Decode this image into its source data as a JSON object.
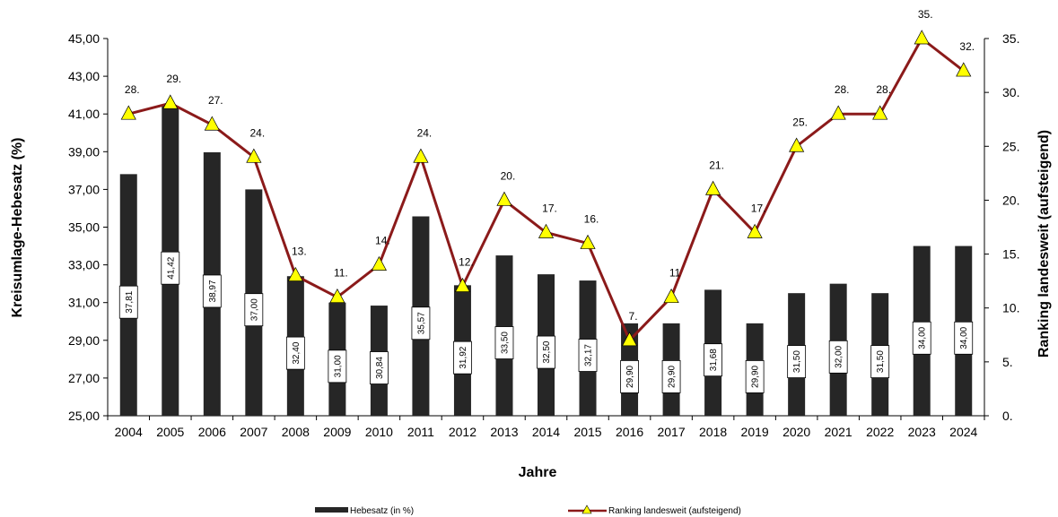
{
  "chart_data": {
    "type": "bar+line",
    "xlabel": "Jahre",
    "ylabel_left": "Kreisumlage-Hebesatz (%)",
    "ylabel_right": "Ranking landesweit (aufsteigend)",
    "ylim_left": [
      25,
      45
    ],
    "ylim_right": [
      0,
      35
    ],
    "left_ticks": [
      "25,00",
      "27,00",
      "29,00",
      "31,00",
      "33,00",
      "35,00",
      "37,00",
      "39,00",
      "41,00",
      "43,00",
      "45,00"
    ],
    "right_ticks": [
      "0.",
      "5.",
      "10.",
      "15.",
      "20.",
      "25.",
      "30.",
      "35."
    ],
    "categories": [
      "2004",
      "2005",
      "2006",
      "2007",
      "2008",
      "2009",
      "2010",
      "2011",
      "2012",
      "2013",
      "2014",
      "2015",
      "2016",
      "2017",
      "2018",
      "2019",
      "2020",
      "2021",
      "2022",
      "2023",
      "2024"
    ],
    "series": [
      {
        "name": "Hebesatz (in %)",
        "type": "bar",
        "color": "#262626",
        "values": [
          37.81,
          41.42,
          38.97,
          37.0,
          32.4,
          31.0,
          30.84,
          35.57,
          31.92,
          33.5,
          32.5,
          32.17,
          29.9,
          29.9,
          31.68,
          29.9,
          31.5,
          32.0,
          31.5,
          34.0,
          34.0
        ],
        "labels": [
          "37,81",
          "41,42",
          "38,97",
          "37,00",
          "32,40",
          "31,00",
          "30,84",
          "35,57",
          "31,92",
          "33,50",
          "32,50",
          "32,17",
          "29,90",
          "29,90",
          "31,68",
          "29,90",
          "31,50",
          "32,00",
          "31,50",
          "34,00",
          "34,00"
        ]
      },
      {
        "name": "Ranking landesweit (aufsteigend)",
        "type": "line",
        "color": "#8b1a1a",
        "marker_color": "#ffff00",
        "values": [
          28,
          29,
          27,
          24,
          13,
          11,
          14,
          24,
          12,
          20,
          17,
          16,
          7,
          11,
          21,
          17,
          25,
          28,
          28,
          35,
          32
        ],
        "labels": [
          "28.",
          "29.",
          "27.",
          "24.",
          "13.",
          "11.",
          "14.",
          "24.",
          "12.",
          "20.",
          "17.",
          "16.",
          "7.",
          "11",
          "21.",
          "17.",
          "25.",
          "28.",
          "28.",
          "35.",
          "32."
        ]
      }
    ],
    "legend": "bottom",
    "grid": false
  }
}
